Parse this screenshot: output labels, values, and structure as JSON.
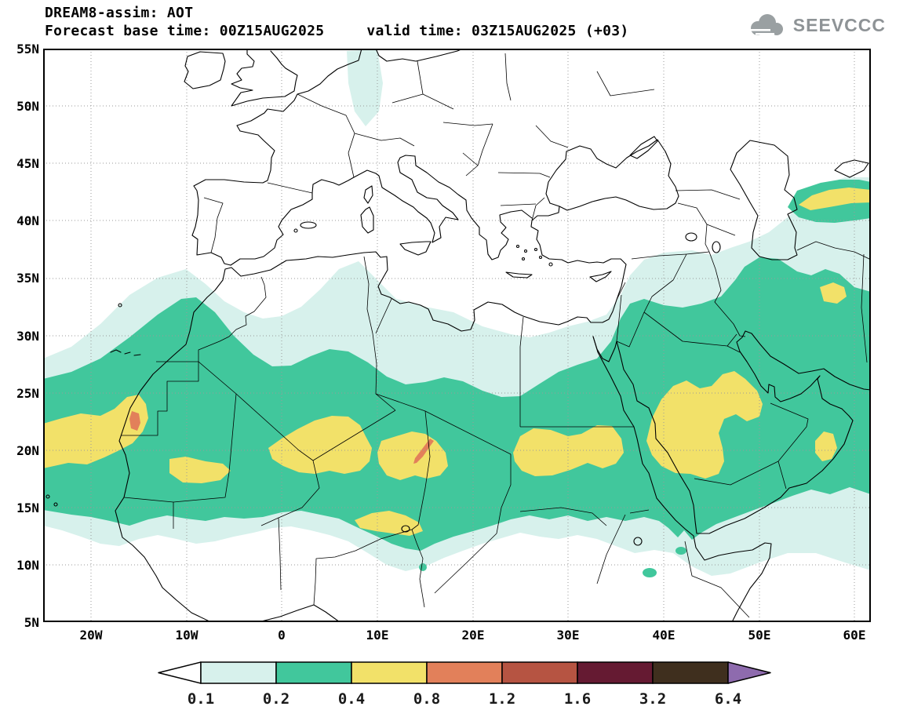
{
  "header": {
    "title": "DREAM8-assim: AOT",
    "base_label": "Forecast base time: 00Z15AUG2025",
    "valid_label": "valid time: 03Z15AUG2025 (+03)"
  },
  "logo": {
    "text": "SEEVCCC"
  },
  "axes": {
    "lat_ticks": [
      "55N",
      "50N",
      "45N",
      "40N",
      "35N",
      "30N",
      "25N",
      "20N",
      "15N",
      "10N",
      "5N"
    ],
    "lon_ticks": [
      "20W",
      "10W",
      "0",
      "10E",
      "20E",
      "30E",
      "40E",
      "50E",
      "60E"
    ]
  },
  "legend": {
    "labels": [
      "0.1",
      "0.2",
      "0.4",
      "0.8",
      "1.2",
      "1.6",
      "3.2",
      "6.4"
    ],
    "left_arrow_color": "#ffffff",
    "right_arrow_color": "#8e6bae",
    "box_colors": [
      "#d7f1ec",
      "#41c79c",
      "#f2e169",
      "#e2805a",
      "#b65442",
      "#651a32",
      "#3f2f1e"
    ]
  },
  "chart_data": {
    "type": "heatmap",
    "subtype": "filled-contour-geographic-map",
    "variable": "AOT (Aerosol Optical Thickness)",
    "model": "DREAM8-assim",
    "base_time": "00Z15AUG2025",
    "valid_time": "03Z15AUG2025 (+03)",
    "lon_range_deg": [
      -25,
      62
    ],
    "lat_range_deg": [
      5,
      55
    ],
    "grid_interval": {
      "lat_deg": 5,
      "lon_deg": 10
    },
    "contour_levels": [
      0.1,
      0.2,
      0.4,
      0.8,
      1.2,
      1.6,
      3.2,
      6.4
    ],
    "level_colors": [
      "#ffffff",
      "#d7f1ec",
      "#41c79c",
      "#f2e169",
      "#e2805a",
      "#b65442",
      "#651a32",
      "#3f2f1e",
      "#8e6bae"
    ],
    "legend_position": "bottom-center",
    "features": [
      {
        "region": "Saharan dust belt background",
        "extent": "25W-62E, 10N-35N",
        "max_band": "0.2-0.4"
      },
      {
        "region": "Mauritania / Western Sahara plume",
        "extent": "25W-10W, 18N-25N",
        "max_band": "0.8-1.2"
      },
      {
        "region": "Small plume SW Mauritania coast",
        "extent": "12W-5W, 17N-19.5N",
        "max_band": "0.4-0.8"
      },
      {
        "region": "Central Sahara (Algeria/Mali/Niger)",
        "extent": "1W-10E, 18N-23N",
        "max_band": "0.4-0.8"
      },
      {
        "region": "Niger / Chad plume with core",
        "extent": "10E-17.5E, 17N-21.5N",
        "max_band": "0.8-1.2"
      },
      {
        "region": "Lake Chad / Sahel strip",
        "extent": "7E-15E, 12.5N-15N",
        "max_band": "0.4-0.8"
      },
      {
        "region": "Sudan / Red Sea plume",
        "extent": "24E-36E, 17.5N-22N",
        "max_band": "0.4-0.8"
      },
      {
        "region": "Arabian Peninsula plume",
        "extent": "38E-50.5E, 17.5N-27N",
        "max_band": "0.4-0.8"
      },
      {
        "region": "Oman coast spot",
        "extent": "56E-58E, 19N-21.5N",
        "max_band": "0.4-0.8"
      },
      {
        "region": "NE Iran spot",
        "extent": "56E-59E, 33N-34.5N",
        "max_band": "0.4-0.8"
      },
      {
        "region": "Turkmenistan / Caspian streak",
        "extent": "54E-62E, 41N-43N",
        "max_band": "0.4-0.8"
      },
      {
        "region": "Central Europe patch",
        "extent": "7E-10.5E, 48N-55N",
        "max_band": "0.1-0.2"
      }
    ]
  }
}
